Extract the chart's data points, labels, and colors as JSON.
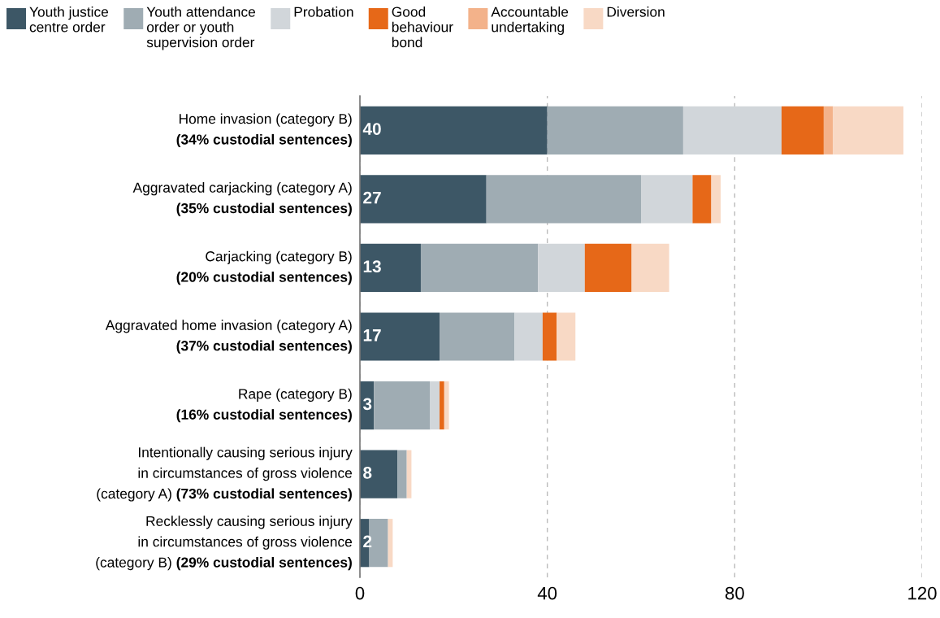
{
  "chart_data": {
    "type": "bar",
    "orientation": "horizontal",
    "stacked": true,
    "categories": [
      "Home invasion (category B)\n(34% custodial sentences)",
      "Aggravated carjacking (category A)\n(35% custodial sentences)",
      "Carjacking (category B)\n(20% custodial sentences)",
      "Aggravated home invasion (category A)\n(37% custodial sentences)",
      "Rape (category B)\n(16% custodial sentences)",
      "Intentionally causing serious injury\nin circumstances of gross violence\n(category A) (73% custodial sentences)",
      "Recklessly causing serious injury\nin circumstances of gross violence\n(category B) (29% custodial sentences)"
    ],
    "series": [
      {
        "name": "Youth justice\ncentre order",
        "color": "#3d5766",
        "values": [
          40,
          27,
          13,
          17,
          3,
          8,
          2
        ],
        "value_labels": [
          "40",
          "27",
          "13",
          "17",
          "3",
          "8",
          "2"
        ]
      },
      {
        "name": "Youth attendance\norder or youth\nsupervision order",
        "color": "#9facb3",
        "values": [
          29,
          33,
          25,
          16,
          12,
          2,
          4
        ]
      },
      {
        "name": "Probation",
        "color": "#d1d6da",
        "values": [
          21,
          11,
          10,
          6,
          2,
          0,
          0
        ]
      },
      {
        "name": "Good\nbehaviour\nbond",
        "color": "#e66818",
        "values": [
          9,
          4,
          10,
          3,
          1,
          0,
          0
        ]
      },
      {
        "name": "Accountable\nundertaking",
        "color": "#f3b28a",
        "values": [
          2,
          0,
          0,
          0,
          0,
          0,
          0
        ]
      },
      {
        "name": "Diversion",
        "color": "#f8d9c5",
        "values": [
          15,
          2,
          8,
          4,
          1,
          1,
          1
        ]
      }
    ],
    "xlim": [
      0,
      120
    ],
    "xticks": [
      0,
      40,
      80,
      120
    ],
    "grid": "x",
    "legend": "top"
  }
}
